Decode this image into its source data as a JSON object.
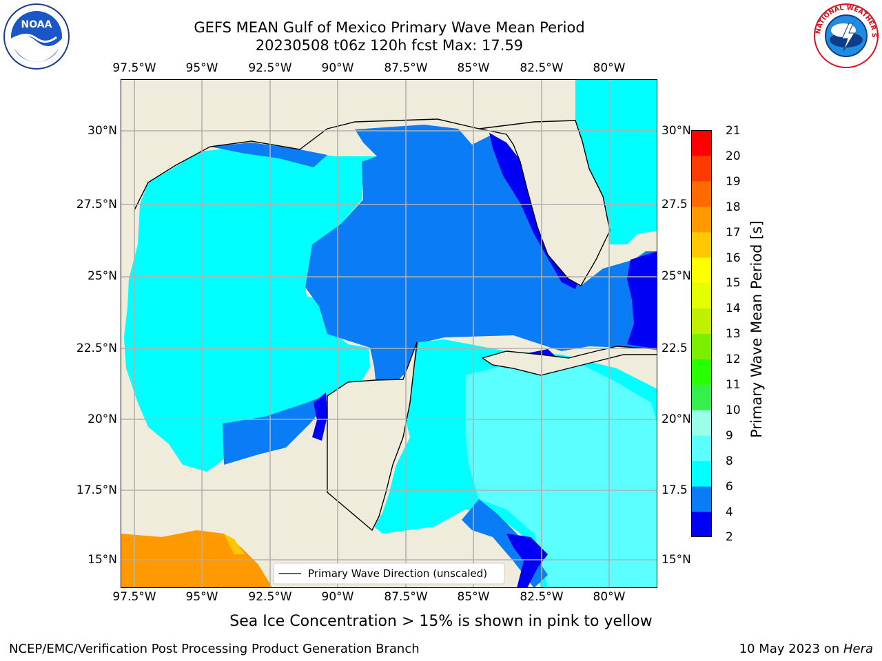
{
  "title": {
    "line1": "GEFS MEAN Gulf of Mexico Primary Wave Mean Period",
    "line2": "20230508 t06z 120h fcst   Max: 17.59"
  },
  "logos": {
    "left": {
      "name": "noaa-logo",
      "text": "NOAA"
    },
    "right": {
      "name": "nws-logo",
      "text": "NATIONAL WEATHER SERVICE"
    }
  },
  "axes": {
    "lon_labels": [
      "97.5°W",
      "95°W",
      "92.5°W",
      "90°W",
      "87.5°W",
      "85°W",
      "82.5°W",
      "80°W"
    ],
    "lat_labels_left": [
      "30°N",
      "27.5°N",
      "25°N",
      "22.5°N",
      "20°N",
      "17.5°N",
      "15°N"
    ],
    "lat_labels_right": [
      "30°N",
      "27.5",
      "25°N",
      "22.5",
      "20°N",
      "17.5",
      "15°N"
    ],
    "lon_range": [
      -98,
      -78.2
    ],
    "lat_range": [
      14.0,
      31.8
    ]
  },
  "legend": {
    "label": "Primary Wave Direction (unscaled)"
  },
  "colorbar": {
    "label": "Primary Wave Mean Period [s]",
    "ticks": [
      "2",
      "4",
      "6",
      "8",
      "9",
      "10",
      "11",
      "12",
      "13",
      "14",
      "15",
      "16",
      "17",
      "18",
      "19",
      "20",
      "21"
    ],
    "colors": [
      "#0000f5",
      "#0a7cf5",
      "#00ffff",
      "#5cffff",
      "#99ffe6",
      "#36ee4c",
      "#28ff00",
      "#7aef00",
      "#bff000",
      "#e4ff00",
      "#ffff00",
      "#ffc800",
      "#ff9900",
      "#ff6a00",
      "#ff3a00",
      "#ff0000"
    ]
  },
  "chart_data": {
    "type": "map-field",
    "variable": "Primary Wave Mean Period",
    "units": "s",
    "max": 17.59,
    "land_color": "#efecdc",
    "arrow_color": "#ff0000",
    "levels": [
      2,
      4,
      6,
      8,
      9,
      10,
      11,
      12,
      13,
      14,
      15,
      16,
      17,
      18,
      19,
      20,
      21
    ]
  },
  "notes": {
    "sea_ice": "Sea Ice Concentration > 15% is shown in pink to yellow"
  },
  "footer": {
    "left": "NCEP/EMC/Verification Post Processing Product Generation Branch",
    "date": "10 May 2023 on ",
    "machine": "Hera"
  }
}
